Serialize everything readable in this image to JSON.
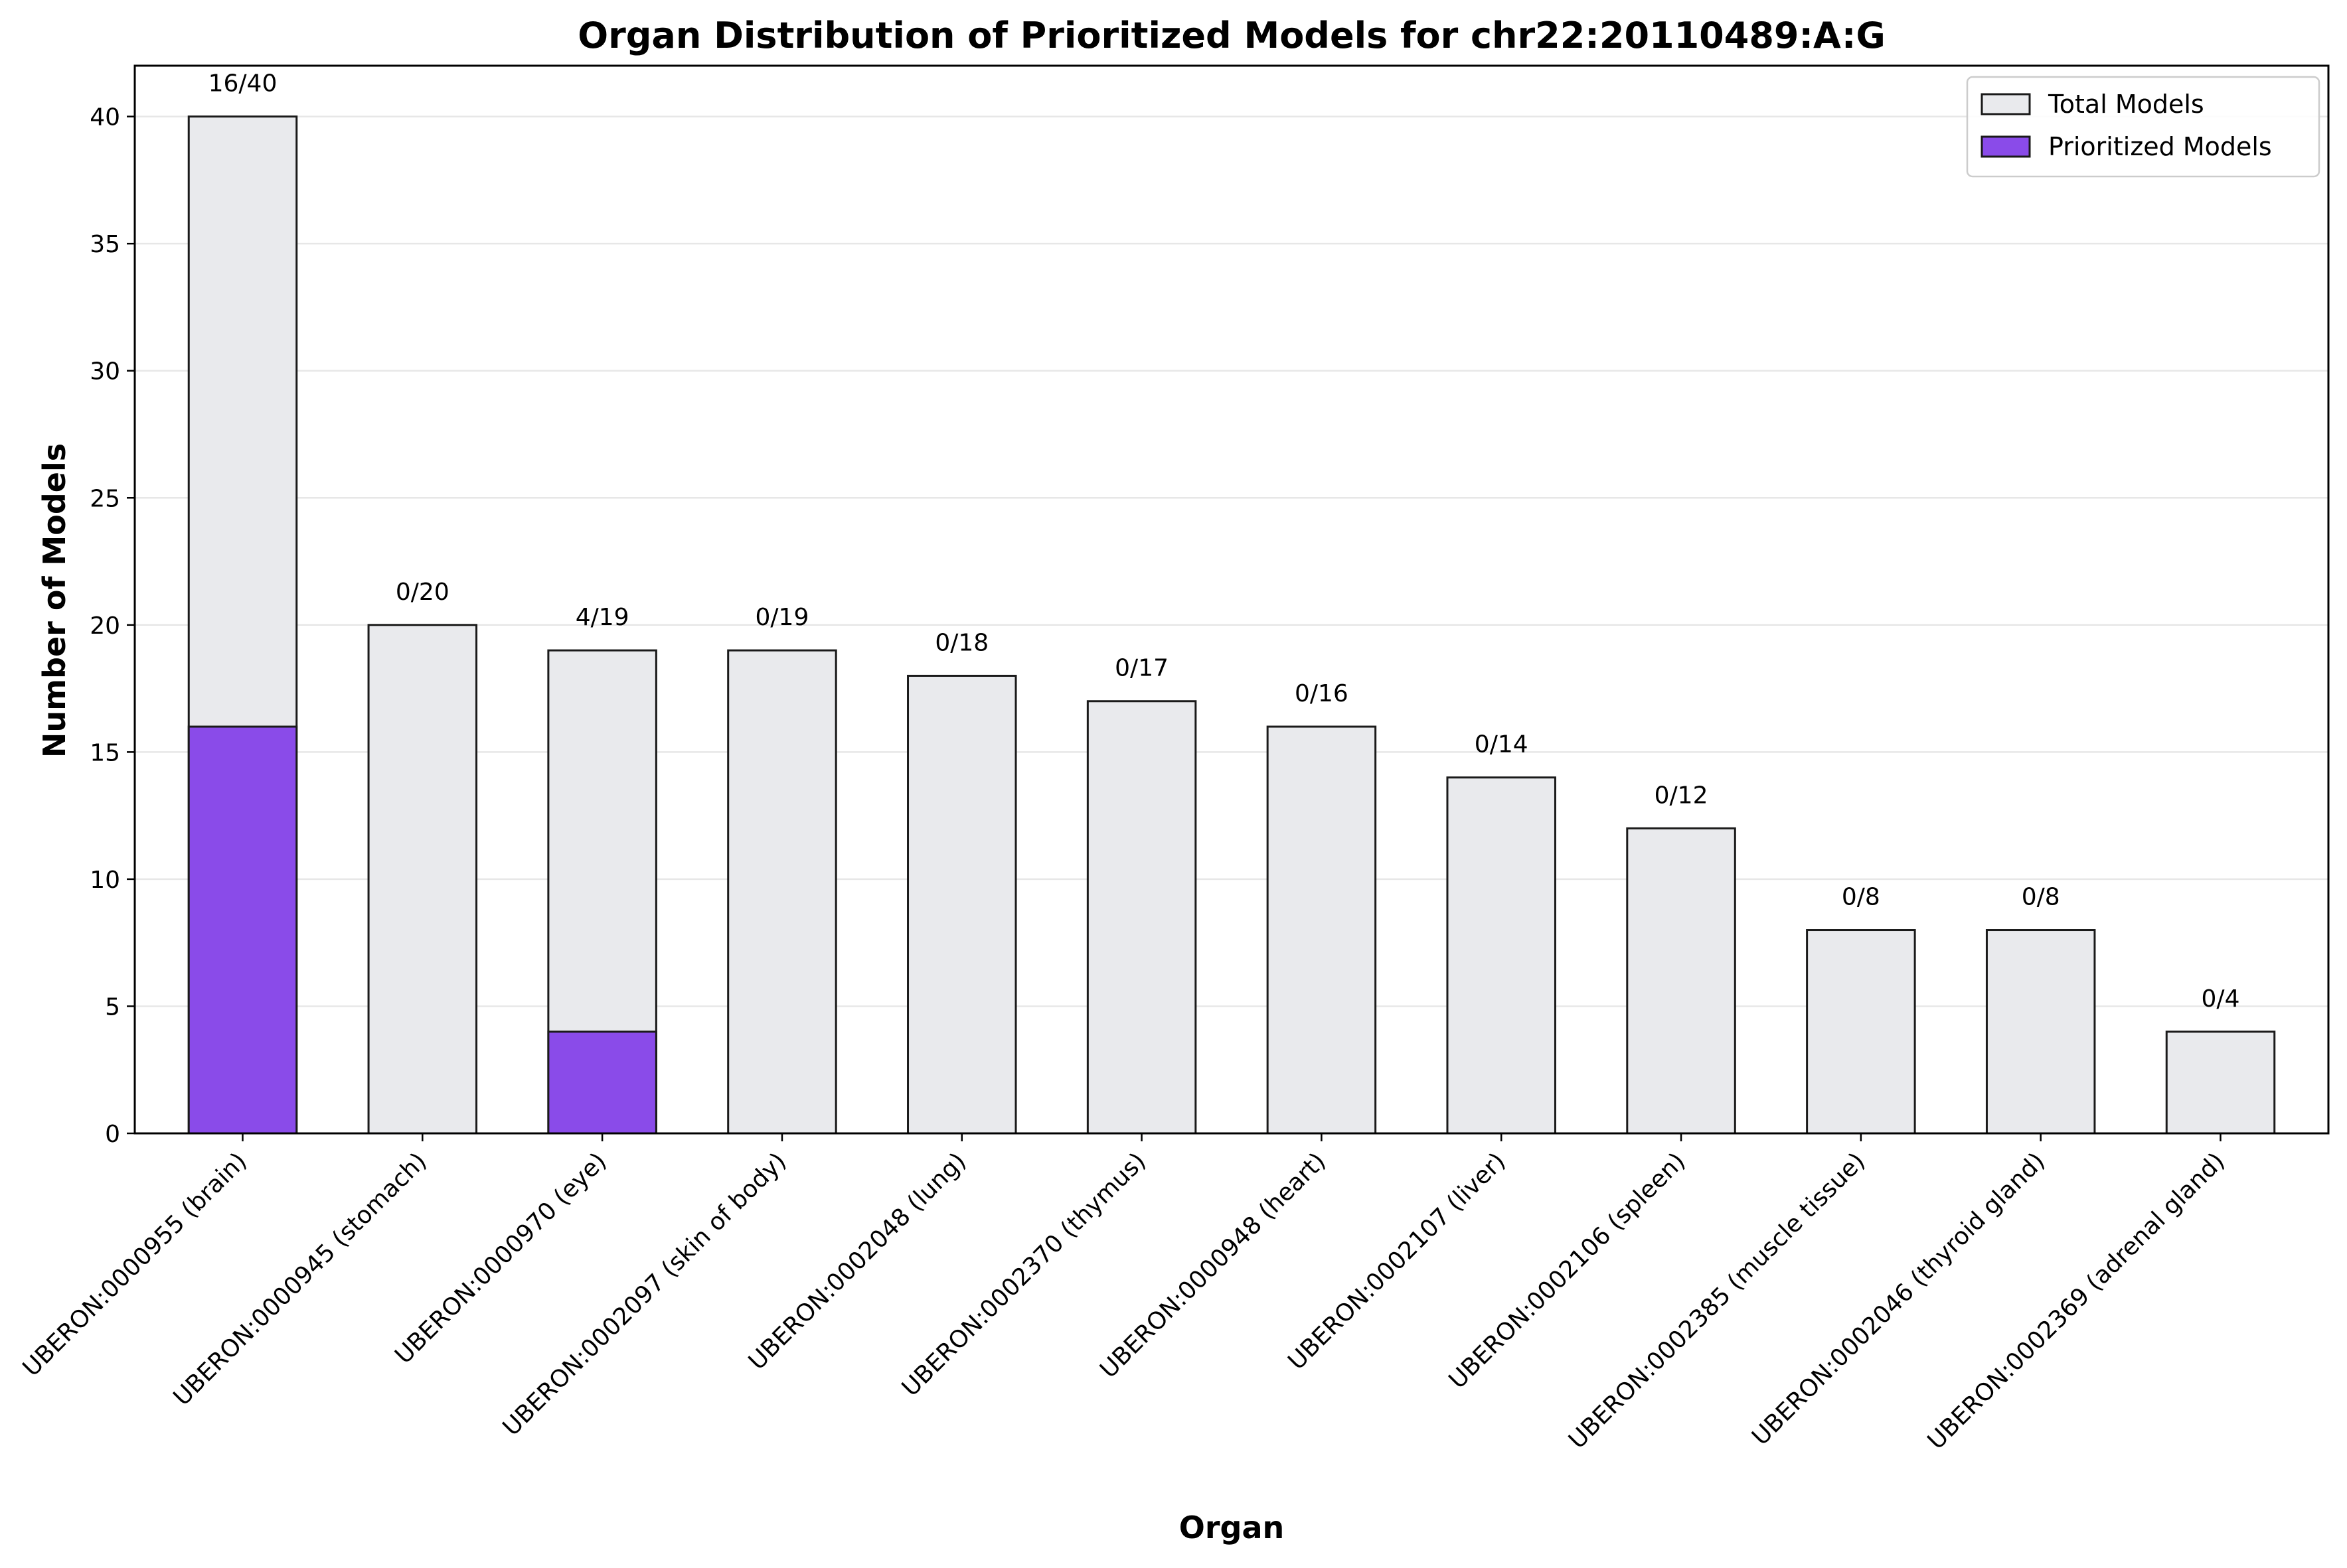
{
  "chart_data": {
    "type": "bar",
    "title": "Organ Distribution of Prioritized Models for chr22:20110489:A:G",
    "xlabel": "Organ",
    "ylabel": "Number of Models",
    "ylim": [
      0,
      42
    ],
    "yticks": [
      0,
      5,
      10,
      15,
      20,
      25,
      30,
      35,
      40
    ],
    "grid": "horizontal",
    "legend_position": "top-right",
    "stacking": "overlay",
    "categories": [
      "UBERON:0000955 (brain)",
      "UBERON:0000945 (stomach)",
      "UBERON:0000970 (eye)",
      "UBERON:0002097 (skin of body)",
      "UBERON:0002048 (lung)",
      "UBERON:0002370 (thymus)",
      "UBERON:0000948 (heart)",
      "UBERON:0002107 (liver)",
      "UBERON:0002106 (spleen)",
      "UBERON:0002385 (muscle tissue)",
      "UBERON:0002046 (thyroid gland)",
      "UBERON:0002369 (adrenal gland)"
    ],
    "series": [
      {
        "name": "Total Models",
        "color": "#e9eaed",
        "values": [
          40,
          20,
          19,
          19,
          18,
          17,
          16,
          14,
          12,
          8,
          8,
          4
        ]
      },
      {
        "name": "Prioritized Models",
        "color": "#8a4be9",
        "values": [
          16,
          0,
          4,
          0,
          0,
          0,
          0,
          0,
          0,
          0,
          0,
          0
        ]
      }
    ],
    "data_labels": [
      "16/40",
      "0/20",
      "4/19",
      "0/19",
      "0/18",
      "0/17",
      "0/16",
      "0/14",
      "0/12",
      "0/8",
      "0/8",
      "0/4"
    ]
  }
}
